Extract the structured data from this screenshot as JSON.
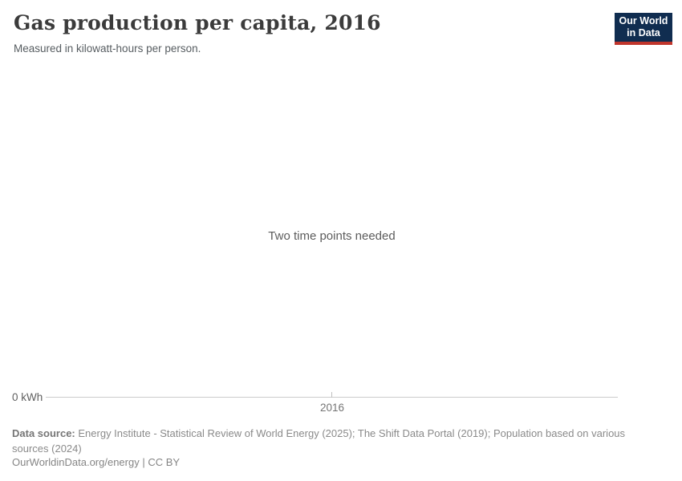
{
  "header": {
    "title": "Gas production per capita, 2016",
    "subtitle": "Measured in kilowatt-hours per person."
  },
  "logo": {
    "line1": "Our World",
    "line2": "in Data",
    "bg_color": "#102d50",
    "accent_color": "#c0352c"
  },
  "chart_data": {
    "type": "line",
    "title": "Gas production per capita, 2016",
    "subtitle": "Measured in kilowatt-hours per person.",
    "series": [],
    "empty_state_message": "Two time points needed",
    "x_axis": {
      "ticks": [
        "2016"
      ]
    },
    "y_axis": {
      "ticks": [
        "0 kWh"
      ]
    },
    "grid": false,
    "legend": false,
    "axis_line_color": "#cccccc"
  },
  "footer": {
    "datasource_label": "Data source:",
    "datasource_text": "Energy Institute - Statistical Review of World Energy (2025); The Shift Data Portal (2019); Population based on various sources (2024)",
    "credit": "OurWorldinData.org/energy | CC BY"
  }
}
